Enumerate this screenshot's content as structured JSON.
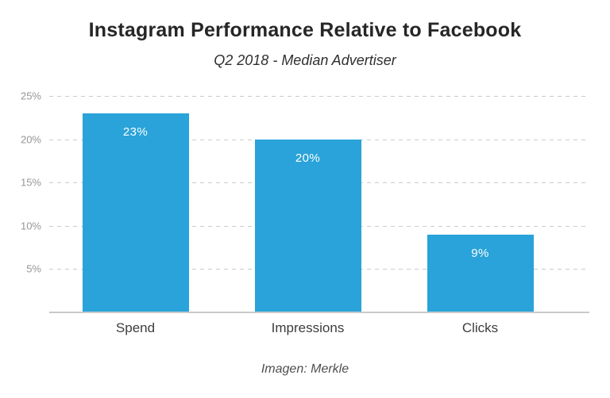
{
  "header": {
    "title": "Instagram Performance Relative to Facebook",
    "subtitle": "Q2 2018 - Median Advertiser"
  },
  "footer": {
    "caption": "Imagen: Merkle"
  },
  "colors": {
    "bar": "#29a3d9",
    "gridline": "#cbcbcb",
    "axis_line": "#c9c9c9",
    "tick_label": "#969696",
    "title": "#262626",
    "value_label": "#ffffff",
    "background": "#ffffff"
  },
  "chart_data": {
    "type": "bar",
    "title": "Instagram Performance Relative to Facebook",
    "subtitle": "Q2 2018 - Median Advertiser",
    "categories": [
      "Spend",
      "Impressions",
      "Clicks"
    ],
    "values": [
      23,
      20,
      9
    ],
    "value_labels": [
      "23%",
      "20%",
      "9%"
    ],
    "unit": "%",
    "xlabel": "",
    "ylabel": "",
    "ylim": [
      0,
      25
    ],
    "y_ticks": [
      "25%",
      "20%",
      "15%",
      "10%",
      "5%"
    ],
    "y_tick_values": [
      25,
      20,
      15,
      10,
      5
    ],
    "grid": "horizontal dashed",
    "legend": "none",
    "source_caption": "Imagen: Merkle"
  }
}
